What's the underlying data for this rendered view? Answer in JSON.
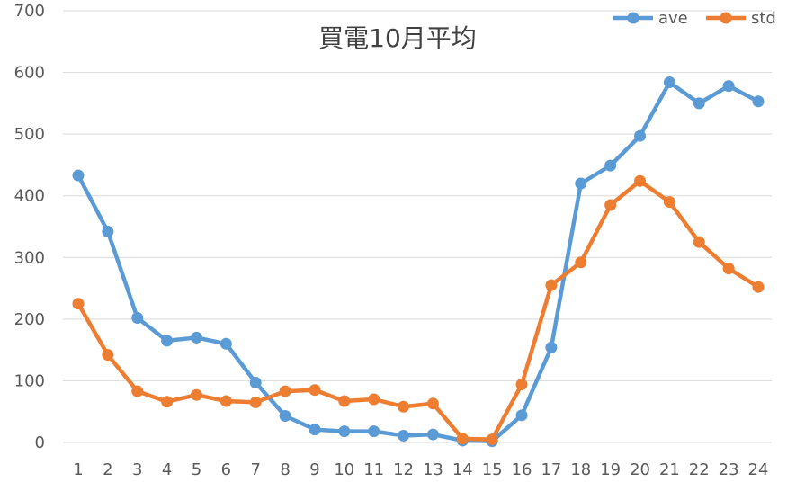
{
  "chart_data": {
    "type": "line",
    "title": "買電10月平均",
    "categories": [
      "1",
      "2",
      "3",
      "4",
      "5",
      "6",
      "7",
      "8",
      "9",
      "10",
      "11",
      "12",
      "13",
      "14",
      "15",
      "16",
      "17",
      "18",
      "19",
      "20",
      "21",
      "22",
      "23",
      "24"
    ],
    "y_ticks": [
      "0",
      "100",
      "200",
      "300",
      "400",
      "500",
      "600",
      "700"
    ],
    "ylim": [
      0,
      700
    ],
    "grid": "horizontal",
    "legend_position": "top-right",
    "series": [
      {
        "name": "ave",
        "color": "#5B9BD5",
        "values": [
          433,
          342,
          202,
          165,
          170,
          160,
          97,
          43,
          21,
          18,
          18,
          11,
          13,
          3,
          2,
          44,
          154,
          420,
          449,
          497,
          584,
          550,
          578,
          553
        ]
      },
      {
        "name": "std",
        "color": "#ED7D31",
        "values": [
          225,
          142,
          83,
          66,
          77,
          67,
          65,
          83,
          85,
          67,
          70,
          58,
          63,
          6,
          5,
          94,
          255,
          292,
          385,
          424,
          390,
          325,
          282,
          252
        ]
      }
    ]
  }
}
